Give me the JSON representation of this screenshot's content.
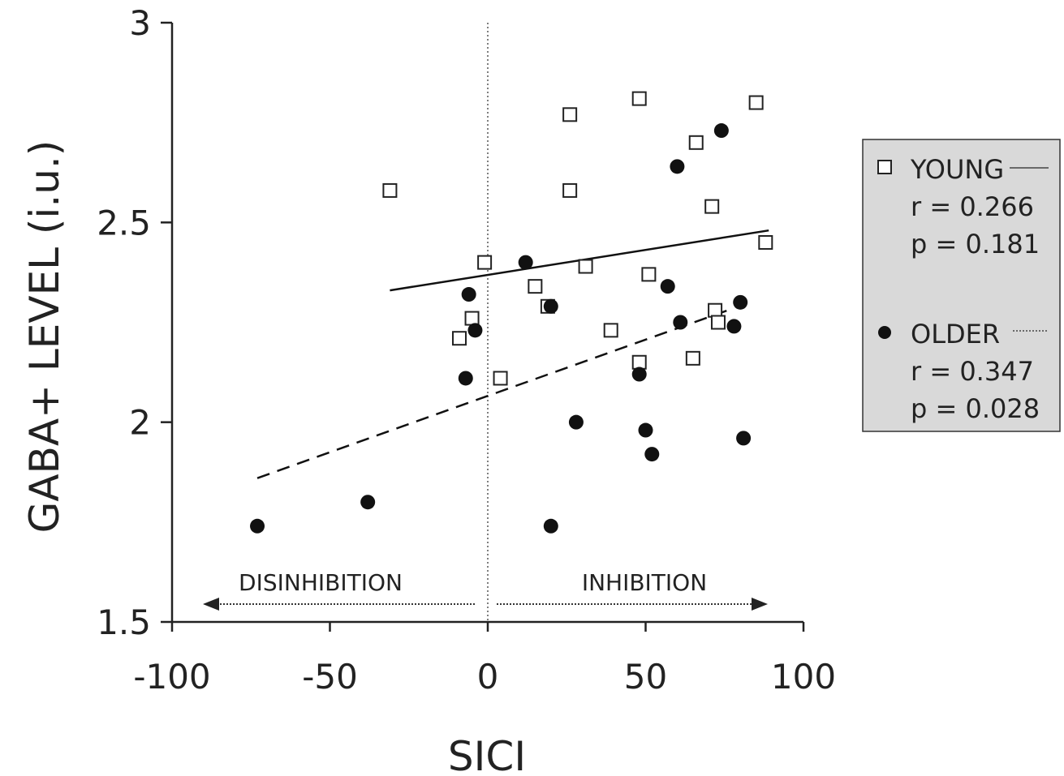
{
  "chart_data": {
    "type": "scatter",
    "xlabel": "SICI",
    "ylabel": "GABA+ LEVEL  (i.u.)",
    "xlim": [
      -100,
      100
    ],
    "ylim": [
      1.5,
      3
    ],
    "x_ticks": [
      "-100",
      "-50",
      "0",
      "50",
      "100"
    ],
    "y_ticks": [
      "1.5",
      "2",
      "2.5",
      "3"
    ],
    "grid": false,
    "legend_position": "right",
    "annotations": {
      "left": "DISINHIBITION",
      "right": "INHIBITION"
    },
    "series": [
      {
        "name": "YOUNG",
        "marker": "open-square",
        "line": "solid",
        "r_label": "r = 0.266",
        "p_label": "p = 0.181",
        "fit": {
          "x": [
            -31,
            89
          ],
          "y": [
            2.33,
            2.48
          ]
        },
        "points": [
          {
            "x": -31,
            "y": 2.58
          },
          {
            "x": -1,
            "y": 2.4
          },
          {
            "x": 26,
            "y": 2.77
          },
          {
            "x": 26,
            "y": 2.58
          },
          {
            "x": 48,
            "y": 2.81
          },
          {
            "x": 66,
            "y": 2.7
          },
          {
            "x": 85,
            "y": 2.8
          },
          {
            "x": 71,
            "y": 2.54
          },
          {
            "x": 88,
            "y": 2.45
          },
          {
            "x": 15,
            "y": 2.34
          },
          {
            "x": 31,
            "y": 2.39
          },
          {
            "x": 51,
            "y": 2.37
          },
          {
            "x": -5,
            "y": 2.26
          },
          {
            "x": -9,
            "y": 2.21
          },
          {
            "x": 19,
            "y": 2.29
          },
          {
            "x": 72,
            "y": 2.28
          },
          {
            "x": 73,
            "y": 2.25
          },
          {
            "x": 39,
            "y": 2.23
          },
          {
            "x": 65,
            "y": 2.16
          },
          {
            "x": 48,
            "y": 2.15
          },
          {
            "x": 4,
            "y": 2.11
          }
        ]
      },
      {
        "name": "OLDER",
        "marker": "filled-circle",
        "line": "dashed",
        "r_label": "r = 0.347",
        "p_label": "p = 0.028",
        "fit": {
          "x": [
            -73,
            76
          ],
          "y": [
            1.86,
            2.28
          ]
        },
        "points": [
          {
            "x": 74,
            "y": 2.73
          },
          {
            "x": 60,
            "y": 2.64
          },
          {
            "x": 12,
            "y": 2.4
          },
          {
            "x": 57,
            "y": 2.34
          },
          {
            "x": -6,
            "y": 2.32
          },
          {
            "x": -4,
            "y": 2.23
          },
          {
            "x": 20,
            "y": 2.29
          },
          {
            "x": 80,
            "y": 2.3
          },
          {
            "x": 61,
            "y": 2.25
          },
          {
            "x": 78,
            "y": 2.24
          },
          {
            "x": -7,
            "y": 2.11
          },
          {
            "x": 48,
            "y": 2.12
          },
          {
            "x": 28,
            "y": 2.0
          },
          {
            "x": 50,
            "y": 1.98
          },
          {
            "x": 52,
            "y": 1.92
          },
          {
            "x": 81,
            "y": 1.96
          },
          {
            "x": -38,
            "y": 1.8
          },
          {
            "x": -73,
            "y": 1.74
          },
          {
            "x": 20,
            "y": 1.74
          }
        ]
      }
    ]
  }
}
